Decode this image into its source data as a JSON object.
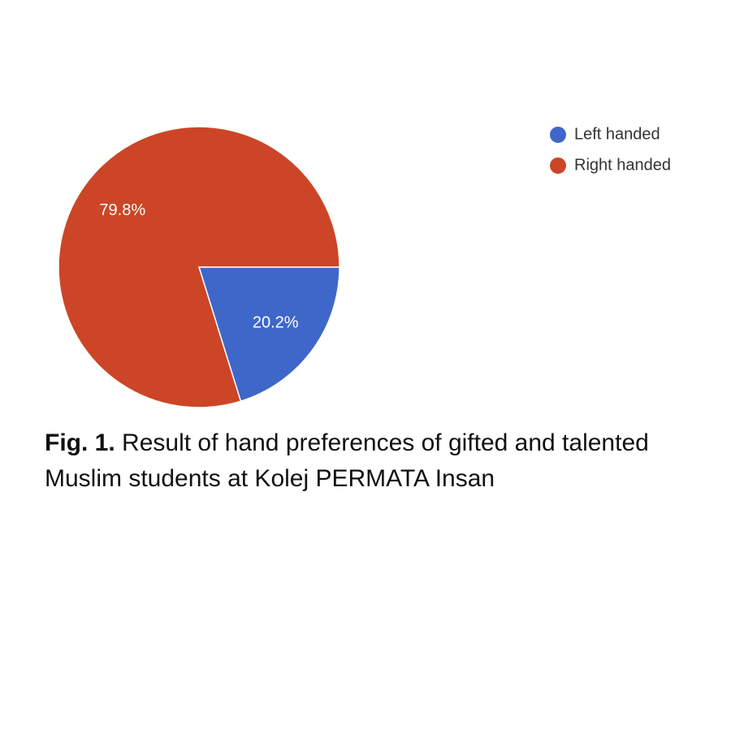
{
  "chart_data": {
    "type": "pie",
    "categories": [
      "Left handed",
      "Right handed"
    ],
    "values": [
      20.2,
      79.8
    ],
    "value_labels": [
      "20.2%",
      "79.8%"
    ],
    "colors": [
      "#3f67c9",
      "#cc4527"
    ],
    "legend": "right",
    "caption_label": "Fig. 1.",
    "caption": "Result of hand preferences of gifted and talented Muslim students at Kolej PERMATA Insan"
  }
}
